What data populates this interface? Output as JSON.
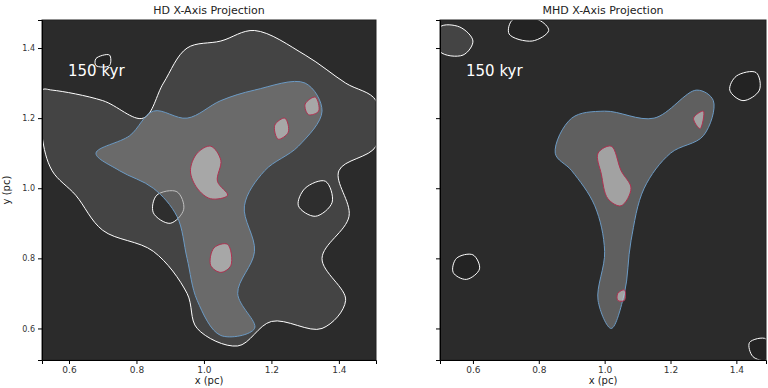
{
  "chart_data": [
    {
      "type": "contour",
      "title": "HD X-Axis Projection",
      "annotation": "150 kyr",
      "x_label": "x (pc)",
      "y_label": "y (pc)",
      "xlim": [
        0.52,
        1.51
      ],
      "ylim": [
        0.51,
        1.48
      ],
      "xticks": [
        0.6,
        0.8,
        {
          "value": 1,
          "label": "1.0"
        },
        1.2,
        1.4
      ],
      "yticks": [
        0.6,
        0.8,
        {
          "value": 1,
          "label": "1.0"
        },
        1.2,
        1.4
      ],
      "contours": [
        {
          "color": "#ffffff",
          "x": [
            0.52,
            0.55,
            0.7,
            0.82,
            0.88,
            0.95,
            1.05,
            1.15,
            1.3,
            1.42,
            1.51,
            1.51,
            1.4,
            1.43,
            1.35,
            1.42,
            1.35,
            1.2,
            1.1,
            0.98,
            0.95,
            0.85,
            0.7,
            0.62,
            0.55,
            0.52
          ],
          "y": [
            1.28,
            1.28,
            1.25,
            1.2,
            1.3,
            1.4,
            1.42,
            1.45,
            1.38,
            1.3,
            1.25,
            1.12,
            1.05,
            0.92,
            0.8,
            0.68,
            0.6,
            0.62,
            0.55,
            0.6,
            0.7,
            0.82,
            0.88,
            0.98,
            1.05,
            1.15
          ]
        },
        {
          "color": "#ffffff",
          "x": [
            0.86,
            0.92,
            0.94,
            0.9,
            0.85
          ],
          "y": [
            0.98,
            0.99,
            0.94,
            0.9,
            0.93
          ]
        },
        {
          "color": "#ffffff",
          "x": [
            1.3,
            1.36,
            1.38,
            1.33,
            1.28
          ],
          "y": [
            1.0,
            1.02,
            0.96,
            0.92,
            0.95
          ]
        },
        {
          "color": "#ffffff",
          "x": [
            0.68,
            0.72,
            0.72,
            0.68
          ],
          "y": [
            1.37,
            1.38,
            1.35,
            1.35
          ]
        },
        {
          "color": "#6b9ac4",
          "x": [
            0.85,
            0.95,
            1.05,
            1.15,
            1.3,
            1.35,
            1.28,
            1.18,
            1.12,
            1.15,
            1.1,
            1.15,
            1.05,
            0.98,
            0.95,
            0.92,
            0.85,
            0.75,
            0.68,
            0.78
          ],
          "y": [
            1.22,
            1.2,
            1.25,
            1.28,
            1.3,
            1.22,
            1.12,
            1.05,
            0.95,
            0.82,
            0.7,
            0.6,
            0.58,
            0.68,
            0.8,
            0.92,
            1.0,
            1.05,
            1.1,
            1.15
          ]
        },
        {
          "color": "#b03050",
          "x": [
            0.98,
            1.02,
            1.05,
            1.04,
            1.07,
            1.02,
            0.98,
            0.96
          ],
          "y": [
            1.1,
            1.12,
            1.08,
            1.02,
            0.98,
            0.97,
            1.0,
            1.05
          ]
        },
        {
          "color": "#b03050",
          "x": [
            1.03,
            1.07,
            1.08,
            1.05,
            1.02
          ],
          "y": [
            0.83,
            0.84,
            0.78,
            0.76,
            0.78
          ]
        },
        {
          "color": "#b03050",
          "x": [
            1.21,
            1.24,
            1.25,
            1.22
          ],
          "y": [
            1.18,
            1.2,
            1.16,
            1.14
          ]
        },
        {
          "color": "#b03050",
          "x": [
            1.3,
            1.33,
            1.34,
            1.31
          ],
          "y": [
            1.24,
            1.26,
            1.22,
            1.21
          ]
        }
      ]
    },
    {
      "type": "contour",
      "title": "MHD X-Axis Projection",
      "annotation": "150 kyr",
      "x_label": "x (pc)",
      "tick_labels": "x",
      "xlim": [
        0.5,
        1.49
      ],
      "ylim": [
        0.51,
        1.48
      ],
      "xticks": [
        0.6,
        0.8,
        {
          "value": 1,
          "label": "1.0"
        },
        1.2,
        1.4
      ],
      "yticks": [
        0.6,
        0.8,
        1,
        1.2,
        1.4
      ],
      "contours": [
        {
          "color": "#ffffff",
          "x": [
            0.5,
            0.56,
            0.6,
            0.57,
            0.5
          ],
          "y": [
            1.46,
            1.46,
            1.42,
            1.38,
            1.39
          ]
        },
        {
          "color": "#ffffff",
          "x": [
            0.72,
            0.8,
            0.83,
            0.78,
            0.71
          ],
          "y": [
            1.48,
            1.48,
            1.45,
            1.42,
            1.44
          ]
        },
        {
          "color": "#ffffff",
          "x": [
            1.4,
            1.46,
            1.47,
            1.42,
            1.38
          ],
          "y": [
            1.32,
            1.33,
            1.28,
            1.25,
            1.28
          ]
        },
        {
          "color": "#ffffff",
          "x": [
            0.55,
            0.6,
            0.62,
            0.58,
            0.54
          ],
          "y": [
            0.8,
            0.81,
            0.77,
            0.74,
            0.76
          ]
        },
        {
          "color": "#ffffff",
          "x": [
            1.44,
            1.49,
            1.49,
            1.45
          ],
          "y": [
            0.56,
            0.57,
            0.51,
            0.52
          ]
        },
        {
          "color": "#6b9ac4",
          "x": [
            0.9,
            1.0,
            1.15,
            1.28,
            1.33,
            1.3,
            1.2,
            1.12,
            1.08,
            1.06,
            1.02,
            0.98,
            1.0,
            0.97,
            0.9,
            0.85
          ],
          "y": [
            1.2,
            1.22,
            1.2,
            1.28,
            1.25,
            1.15,
            1.1,
            1.0,
            0.85,
            0.7,
            0.6,
            0.68,
            0.82,
            0.95,
            1.05,
            1.1
          ]
        },
        {
          "color": "#b03050",
          "x": [
            0.98,
            1.02,
            1.05,
            1.08,
            1.05,
            1.01,
            0.99
          ],
          "y": [
            1.1,
            1.12,
            1.05,
            1.0,
            0.95,
            0.97,
            1.04
          ]
        },
        {
          "color": "#b03050",
          "x": [
            1.27,
            1.3,
            1.29
          ],
          "y": [
            1.2,
            1.22,
            1.17
          ]
        },
        {
          "color": "#b03050",
          "x": [
            1.04,
            1.06,
            1.06,
            1.04
          ],
          "y": [
            0.7,
            0.71,
            0.68,
            0.68
          ]
        }
      ]
    }
  ]
}
